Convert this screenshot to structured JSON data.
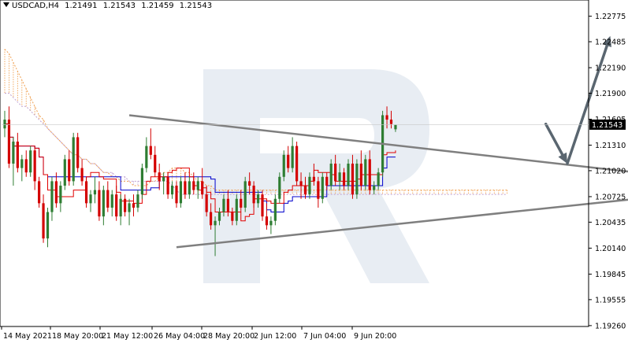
{
  "header": {
    "symbol_tf": "USDCAD,H4",
    "open": "1.21491",
    "high": "1.21543",
    "low": "1.21459",
    "close": "1.21543"
  },
  "colors": {
    "bull": "#2e7d32",
    "bear": "#d40000",
    "tenkan": "#e00000",
    "kijun": "#0000cc",
    "cloud_bear": "#c0a0d0",
    "cloud_bull": "#f0a050",
    "trendline": "#7f7f7f",
    "arrow": "#5a6670",
    "watermark": "#e8edf3"
  },
  "chart_data": {
    "type": "candlestick",
    "instrument": "USDCAD",
    "timeframe": "H4",
    "ylim": [
      1.1925,
      1.2295
    ],
    "y_ticks": [
      "1.22775",
      "1.22485",
      "1.22190",
      "1.21900",
      "1.21605",
      "1.21310",
      "1.21020",
      "1.20725",
      "1.20435",
      "1.20140",
      "1.19845",
      "1.19555",
      "1.19260"
    ],
    "x_ticks": [
      "14 May 2021",
      "18 May 20:00",
      "21 May 12:00",
      "26 May 04:00",
      "28 May 20:00",
      "2 Jun 12:00",
      "7 Jun 04:00",
      "9 Jun 20:00"
    ],
    "current_price": "1.21543",
    "candles": [
      [
        1.215,
        1.217,
        1.214,
        1.216
      ],
      [
        1.216,
        1.2175,
        1.2105,
        1.211
      ],
      [
        1.211,
        1.214,
        1.2085,
        1.2135
      ],
      [
        1.2135,
        1.2145,
        1.21,
        1.2105
      ],
      [
        1.2105,
        1.212,
        1.209,
        1.2115
      ],
      [
        1.2115,
        1.2125,
        1.2095,
        1.21
      ],
      [
        1.21,
        1.213,
        1.2095,
        1.2125
      ],
      [
        1.2125,
        1.213,
        1.208,
        1.209
      ],
      [
        1.209,
        1.2095,
        1.206,
        1.2065
      ],
      [
        1.2065,
        1.2075,
        1.202,
        1.2025
      ],
      [
        1.2025,
        1.206,
        1.2015,
        1.2055
      ],
      [
        1.2055,
        1.2095,
        1.2045,
        1.209
      ],
      [
        1.209,
        1.21,
        1.206,
        1.2065
      ],
      [
        1.2065,
        1.209,
        1.2055,
        1.2085
      ],
      [
        1.2085,
        1.212,
        1.208,
        1.2115
      ],
      [
        1.2115,
        1.2125,
        1.2085,
        1.209
      ],
      [
        1.209,
        1.2145,
        1.2085,
        1.214
      ],
      [
        1.214,
        1.2145,
        1.21,
        1.2105
      ],
      [
        1.2105,
        1.2115,
        1.2085,
        1.209
      ],
      [
        1.209,
        1.2095,
        1.206,
        1.2065
      ],
      [
        1.2065,
        1.208,
        1.2055,
        1.2075
      ],
      [
        1.2075,
        1.2095,
        1.2065,
        1.208
      ],
      [
        1.208,
        1.209,
        1.2045,
        1.205
      ],
      [
        1.205,
        1.2085,
        1.204,
        1.208
      ],
      [
        1.208,
        1.209,
        1.2055,
        1.206
      ],
      [
        1.206,
        1.208,
        1.205,
        1.2075
      ],
      [
        1.2075,
        1.2085,
        1.2045,
        1.205
      ],
      [
        1.205,
        1.2075,
        1.204,
        1.207
      ],
      [
        1.207,
        1.2075,
        1.205,
        1.2055
      ],
      [
        1.2055,
        1.207,
        1.204,
        1.2065
      ],
      [
        1.2065,
        1.2075,
        1.205,
        1.206
      ],
      [
        1.206,
        1.208,
        1.2055,
        1.2075
      ],
      [
        1.2075,
        1.211,
        1.207,
        1.2105
      ],
      [
        1.2105,
        1.214,
        1.21,
        1.213
      ],
      [
        1.213,
        1.215,
        1.2115,
        1.212
      ],
      [
        1.212,
        1.213,
        1.2095,
        1.21
      ],
      [
        1.21,
        1.211,
        1.208,
        1.209
      ],
      [
        1.209,
        1.21,
        1.2075,
        1.2095
      ],
      [
        1.2095,
        1.21,
        1.207,
        1.2075
      ],
      [
        1.2075,
        1.209,
        1.207,
        1.2085
      ],
      [
        1.2085,
        1.209,
        1.206,
        1.2065
      ],
      [
        1.2065,
        1.2095,
        1.206,
        1.209
      ],
      [
        1.209,
        1.21,
        1.207,
        1.2075
      ],
      [
        1.2075,
        1.2095,
        1.207,
        1.209
      ],
      [
        1.209,
        1.21,
        1.2075,
        1.208
      ],
      [
        1.208,
        1.2095,
        1.207,
        1.209
      ],
      [
        1.209,
        1.2105,
        1.207,
        1.2075
      ],
      [
        1.2075,
        1.2085,
        1.205,
        1.2055
      ],
      [
        1.2055,
        1.2065,
        1.2035,
        1.204
      ],
      [
        1.204,
        1.205,
        1.2005,
        1.2045
      ],
      [
        1.2045,
        1.206,
        1.204,
        1.2055
      ],
      [
        1.2055,
        1.2075,
        1.205,
        1.207
      ],
      [
        1.207,
        1.208,
        1.205,
        1.2055
      ],
      [
        1.2055,
        1.206,
        1.204,
        1.2045
      ],
      [
        1.2045,
        1.2075,
        1.204,
        1.207
      ],
      [
        1.207,
        1.208,
        1.2055,
        1.206
      ],
      [
        1.206,
        1.2095,
        1.2055,
        1.209
      ],
      [
        1.209,
        1.21,
        1.2075,
        1.2085
      ],
      [
        1.2085,
        1.209,
        1.206,
        1.2065
      ],
      [
        1.2065,
        1.208,
        1.206,
        1.2075
      ],
      [
        1.2075,
        1.208,
        1.2045,
        1.205
      ],
      [
        1.205,
        1.2065,
        1.2035,
        1.204
      ],
      [
        1.204,
        1.205,
        1.203,
        1.2045
      ],
      [
        1.2045,
        1.2075,
        1.204,
        1.207
      ],
      [
        1.207,
        1.21,
        1.2065,
        1.2095
      ],
      [
        1.2095,
        1.2125,
        1.209,
        1.212
      ],
      [
        1.212,
        1.213,
        1.21,
        1.2105
      ],
      [
        1.2105,
        1.214,
        1.21,
        1.213
      ],
      [
        1.213,
        1.2135,
        1.2085,
        1.209
      ],
      [
        1.209,
        1.21,
        1.207,
        1.2085
      ],
      [
        1.2085,
        1.2095,
        1.207,
        1.2075
      ],
      [
        1.2075,
        1.21,
        1.207,
        1.2095
      ],
      [
        1.2095,
        1.211,
        1.2085,
        1.209
      ],
      [
        1.209,
        1.2095,
        1.206,
        1.207
      ],
      [
        1.207,
        1.21,
        1.2065,
        1.2095
      ],
      [
        1.2095,
        1.21,
        1.208,
        1.2085
      ],
      [
        1.2085,
        1.2115,
        1.208,
        1.211
      ],
      [
        1.211,
        1.212,
        1.2085,
        1.209
      ],
      [
        1.209,
        1.211,
        1.208,
        1.21
      ],
      [
        1.21,
        1.2105,
        1.208,
        1.2085
      ],
      [
        1.2085,
        1.2115,
        1.208,
        1.211
      ],
      [
        1.211,
        1.212,
        1.207,
        1.2075
      ],
      [
        1.2075,
        1.2115,
        1.207,
        1.211
      ],
      [
        1.211,
        1.2125,
        1.208,
        1.2085
      ],
      [
        1.2085,
        1.212,
        1.208,
        1.2115
      ],
      [
        1.2115,
        1.2125,
        1.2075,
        1.208
      ],
      [
        1.208,
        1.209,
        1.2075,
        1.2085
      ],
      [
        1.2085,
        1.2105,
        1.208,
        1.21
      ],
      [
        1.21,
        1.217,
        1.2095,
        1.2165
      ],
      [
        1.2165,
        1.2175,
        1.215,
        1.216
      ],
      [
        1.216,
        1.217,
        1.215,
        1.2155
      ],
      [
        1.2149,
        1.2154,
        1.2146,
        1.2154
      ]
    ],
    "cloud_span_a": [
      1.224,
      1.2235,
      1.2225,
      1.2215,
      1.2205,
      1.2195,
      1.2185,
      1.2175,
      1.2165,
      1.216,
      1.215,
      1.2145,
      1.214,
      1.2135,
      1.213,
      1.2125,
      1.212,
      1.212,
      1.2115,
      1.2115,
      1.211,
      1.211,
      1.2105,
      1.21,
      1.21,
      1.2095,
      1.2095,
      1.209,
      1.209,
      1.209,
      1.2085,
      1.2085,
      1.2085,
      1.2085,
      1.209,
      1.209,
      1.2095,
      1.21,
      1.21,
      1.2105,
      1.2105,
      1.2105,
      1.21,
      1.21,
      1.2095,
      1.209,
      1.209,
      1.2085,
      1.2085,
      1.208,
      1.208,
      1.208,
      1.208,
      1.208,
      1.208,
      1.208,
      1.208,
      1.208,
      1.208,
      1.208,
      1.208,
      1.208,
      1.208,
      1.208,
      1.208,
      1.208,
      1.208,
      1.208,
      1.208,
      1.208,
      1.208,
      1.208,
      1.208,
      1.208,
      1.208,
      1.208,
      1.208,
      1.208,
      1.208,
      1.208,
      1.208,
      1.208,
      1.208,
      1.208,
      1.208,
      1.208,
      1.208,
      1.208,
      1.208,
      1.208,
      1.208,
      1.208,
      1.208,
      1.208,
      1.208,
      1.208,
      1.208,
      1.208,
      1.208,
      1.208,
      1.208,
      1.208,
      1.208,
      1.208,
      1.208,
      1.208,
      1.208,
      1.208,
      1.208,
      1.208,
      1.208,
      1.208,
      1.208,
      1.208,
      1.208,
      1.208,
      1.208,
      1.208
    ],
    "cloud_span_b": [
      1.219,
      1.219,
      1.2185,
      1.218,
      1.2175,
      1.2175,
      1.217,
      1.2165,
      1.216,
      1.2155,
      1.215,
      1.2145,
      1.214,
      1.2135,
      1.213,
      1.2125,
      1.212,
      1.212,
      1.2115,
      1.2115,
      1.211,
      1.211,
      1.2105,
      1.21,
      1.21,
      1.21,
      1.2095,
      1.2095,
      1.2095,
      1.209,
      1.209,
      1.209,
      1.209,
      1.209,
      1.209,
      1.209,
      1.209,
      1.209,
      1.209,
      1.2085,
      1.208,
      1.2075,
      1.2075,
      1.2075,
      1.2075,
      1.2075,
      1.2075,
      1.2075,
      1.2075,
      1.2075,
      1.2075,
      1.2075,
      1.2075,
      1.2075,
      1.2075,
      1.2075,
      1.2075,
      1.2075,
      1.2075,
      1.2075,
      1.2075,
      1.2075,
      1.2075,
      1.2075,
      1.2075,
      1.2075,
      1.2075,
      1.2075,
      1.2075,
      1.2075,
      1.2075,
      1.2075,
      1.2075,
      1.2075,
      1.2075,
      1.2075,
      1.2075,
      1.2075,
      1.2075,
      1.2075,
      1.2075,
      1.2075,
      1.2075,
      1.2075,
      1.2075,
      1.2075,
      1.2075,
      1.2075,
      1.2075,
      1.2075,
      1.2075,
      1.2075,
      1.2075,
      1.2075,
      1.2075,
      1.2075,
      1.2075,
      1.2075,
      1.2075,
      1.2075,
      1.2075,
      1.2075,
      1.2075,
      1.2075,
      1.2075,
      1.2075,
      1.2075,
      1.2075,
      1.2075,
      1.2075,
      1.2075,
      1.2075,
      1.2075,
      1.2075,
      1.2075,
      1.2075,
      1.2075,
      1.2075
    ],
    "trendlines": [
      {
        "name": "upper",
        "from": [
          29,
          1.2165
        ],
        "to": [
          147,
          1.21
        ]
      },
      {
        "name": "lower",
        "from": [
          40,
          1.2015
        ],
        "to": [
          147,
          1.207
        ]
      }
    ],
    "forecast_arrows": [
      {
        "from": [
          126,
          1.2155
        ],
        "to": [
          131,
          1.211
        ]
      },
      {
        "from": [
          131,
          1.211
        ],
        "to": [
          141,
          1.2255
        ]
      }
    ]
  }
}
